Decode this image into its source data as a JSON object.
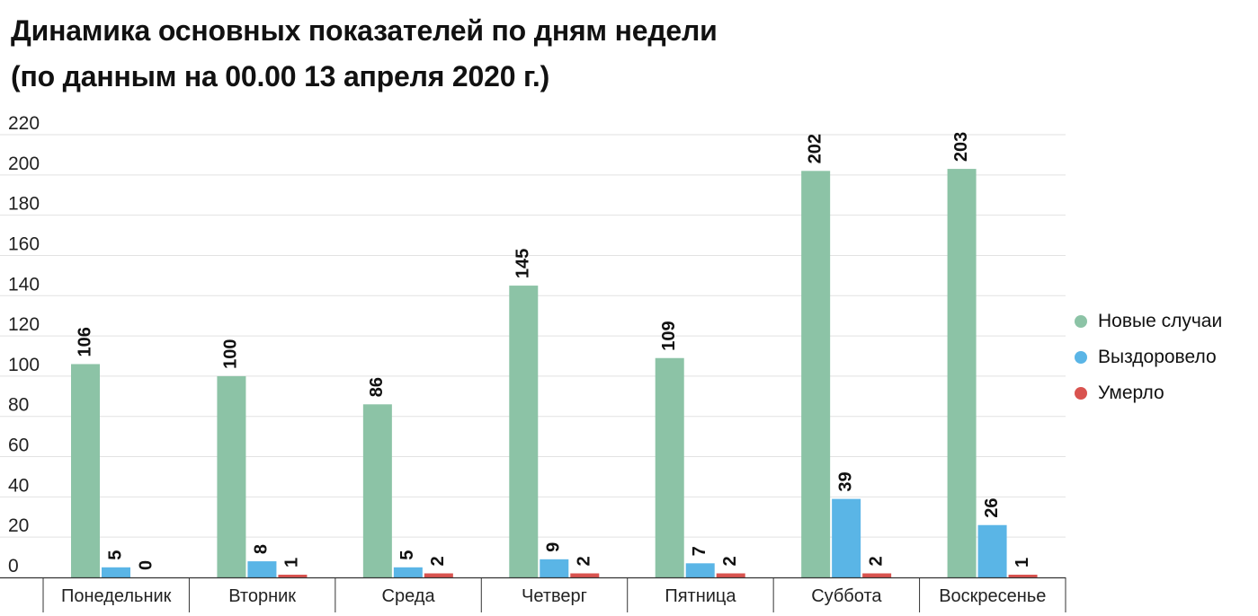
{
  "title": {
    "line1": "Динамика основных показателей по дням недели",
    "line2": "(по данным на 00.00 13 апреля 2020 г.)"
  },
  "chart_data": {
    "type": "bar",
    "categories": [
      "Понедельник",
      "Вторник",
      "Среда",
      "Четверг",
      "Пятница",
      "Суббота",
      "Воскресенье"
    ],
    "series": [
      {
        "name": "Новые случаи",
        "color": "#8cc3a6",
        "values": [
          106,
          100,
          86,
          145,
          109,
          202,
          203
        ]
      },
      {
        "name": "Выздоровело",
        "color": "#5ab5e6",
        "values": [
          5,
          8,
          5,
          9,
          7,
          39,
          26
        ]
      },
      {
        "name": "Умерло",
        "color": "#d9534f",
        "values": [
          0,
          1,
          2,
          2,
          2,
          2,
          1
        ]
      }
    ],
    "yticks": [
      0,
      20,
      40,
      60,
      80,
      100,
      120,
      140,
      160,
      180,
      200,
      220
    ],
    "ylim": [
      0,
      220
    ],
    "grid": true,
    "legend_position": "right",
    "data_labels": "vertical, above bars"
  }
}
